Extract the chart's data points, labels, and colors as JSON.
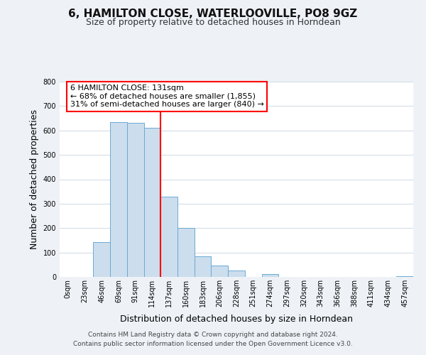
{
  "title": "6, HAMILTON CLOSE, WATERLOOVILLE, PO8 9GZ",
  "subtitle": "Size of property relative to detached houses in Horndean",
  "xlabel": "Distribution of detached houses by size in Horndean",
  "ylabel": "Number of detached properties",
  "bin_labels": [
    "0sqm",
    "23sqm",
    "46sqm",
    "69sqm",
    "91sqm",
    "114sqm",
    "137sqm",
    "160sqm",
    "183sqm",
    "206sqm",
    "228sqm",
    "251sqm",
    "274sqm",
    "297sqm",
    "320sqm",
    "343sqm",
    "366sqm",
    "388sqm",
    "411sqm",
    "434sqm",
    "457sqm"
  ],
  "bar_heights": [
    0,
    0,
    143,
    635,
    631,
    610,
    330,
    200,
    83,
    47,
    27,
    0,
    13,
    0,
    0,
    0,
    0,
    0,
    0,
    0,
    2
  ],
  "bar_color": "#ccdded",
  "bar_edge_color": "#6aaad4",
  "vline_color": "red",
  "vline_x_index": 6,
  "annotation_lines": [
    "6 HAMILTON CLOSE: 131sqm",
    "← 68% of detached houses are smaller (1,855)",
    "31% of semi-detached houses are larger (840) →"
  ],
  "ylim": [
    0,
    800
  ],
  "yticks": [
    0,
    100,
    200,
    300,
    400,
    500,
    600,
    700,
    800
  ],
  "background_color": "#eef2f7",
  "plot_background_color": "#ffffff",
  "footer_line1": "Contains HM Land Registry data © Crown copyright and database right 2024.",
  "footer_line2": "Contains public sector information licensed under the Open Government Licence v3.0.",
  "title_fontsize": 11,
  "subtitle_fontsize": 9,
  "xlabel_fontsize": 9,
  "ylabel_fontsize": 9,
  "tick_fontsize": 7,
  "footer_fontsize": 6.5,
  "annotation_fontsize": 8
}
